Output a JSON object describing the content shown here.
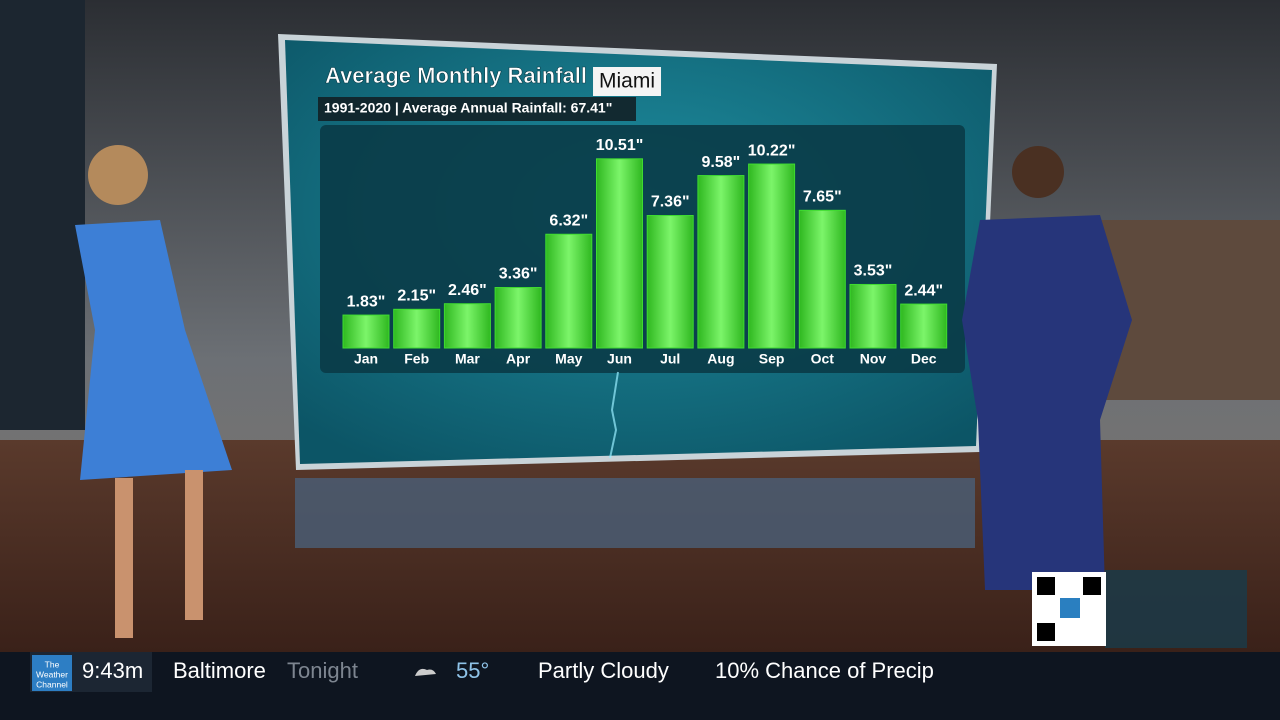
{
  "chart_data": {
    "type": "bar",
    "title": "Average Monthly Rainfall",
    "location": "Miami",
    "subtitle": "1991-2020 | Average Annual Rainfall: 67.41\"",
    "categories": [
      "Jan",
      "Feb",
      "Mar",
      "Apr",
      "May",
      "Jun",
      "Jul",
      "Aug",
      "Sep",
      "Oct",
      "Nov",
      "Dec"
    ],
    "values": [
      1.83,
      2.15,
      2.46,
      3.36,
      6.32,
      10.51,
      7.36,
      9.58,
      10.22,
      7.65,
      3.53,
      2.44
    ],
    "value_labels": [
      "1.83\"",
      "2.15\"",
      "2.46\"",
      "3.36\"",
      "6.32\"",
      "10.51\"",
      "7.36\"",
      "9.58\"",
      "10.22\"",
      "7.65\"",
      "3.53\"",
      "2.44\""
    ],
    "color": "#3fdc30"
  },
  "ticker": {
    "logo": [
      "The",
      "Weather",
      "Channel"
    ],
    "time": "9:43m",
    "city": "Baltimore",
    "period": "Tonight",
    "temperature": "55°",
    "condition": "Partly Cloudy",
    "precip": "10% Chance of Precip"
  }
}
